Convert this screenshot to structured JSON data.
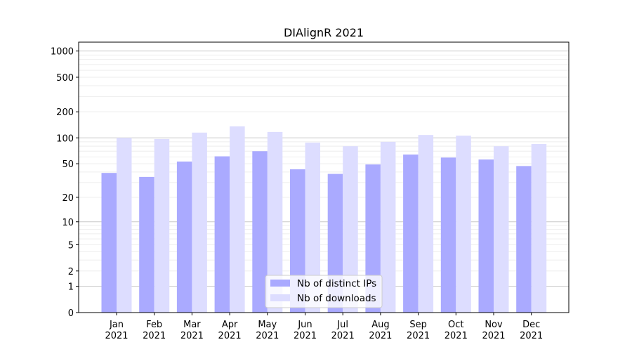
{
  "chart_data": {
    "type": "bar",
    "title": "DIAlignR 2021",
    "xlabel": "",
    "ylabel": "",
    "y_scale": "symlog",
    "ylim": [
      0,
      1265
    ],
    "yticks": [
      0,
      1,
      2,
      5,
      10,
      20,
      50,
      100,
      200,
      500,
      1000
    ],
    "grid": true,
    "legend_position": "lower center",
    "categories": [
      "Jan\n2021",
      "Feb\n2021",
      "Mar\n2021",
      "Apr\n2021",
      "May\n2021",
      "Jun\n2021",
      "Jul\n2021",
      "Aug\n2021",
      "Sep\n2021",
      "Oct\n2021",
      "Nov\n2021",
      "Dec\n2021"
    ],
    "series": [
      {
        "name": "Nb of distinct IPs",
        "color": "#aaaaff",
        "values": [
          39,
          35,
          53,
          61,
          70,
          43,
          38,
          49,
          64,
          59,
          56,
          47
        ]
      },
      {
        "name": "Nb of downloads",
        "color": "#ddddff",
        "values": [
          100,
          97,
          115,
          136,
          117,
          88,
          80,
          90,
          108,
          106,
          80,
          85
        ]
      }
    ]
  }
}
